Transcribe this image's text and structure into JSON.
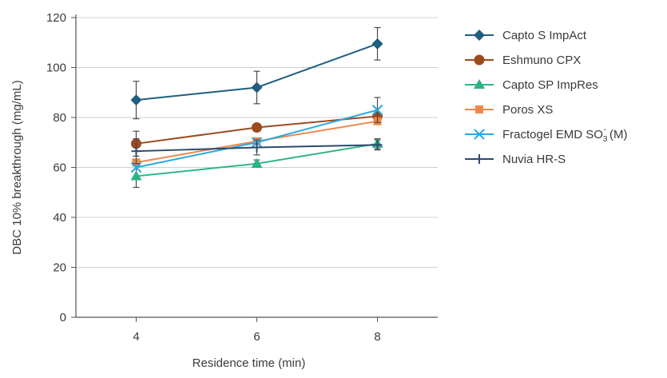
{
  "chart_data": {
    "type": "line",
    "xlabel": "Residence time (min)",
    "ylabel": "DBC 10% breakthrough (mg/mL)",
    "x": [
      4,
      6,
      8
    ],
    "xlim": [
      3,
      9
    ],
    "ylim": [
      0,
      120
    ],
    "xticks": [
      "4",
      "6",
      "8"
    ],
    "yticks": [
      "0",
      "20",
      "40",
      "60",
      "80",
      "100",
      "120"
    ],
    "grid": "horizontal",
    "legend": "right",
    "series": [
      {
        "name": "Capto S ImpAct",
        "color": "#1f5f7f",
        "marker": "diamond",
        "values": [
          87,
          92,
          109.5
        ],
        "err": [
          7.5,
          6.5,
          6.5
        ]
      },
      {
        "name": "Eshmuno CPX",
        "color": "#9c4a1e",
        "marker": "circle",
        "values": [
          69.5,
          76,
          80.5
        ],
        "err": [
          5,
          0,
          0
        ]
      },
      {
        "name": "Capto SP ImpRes",
        "color": "#2bb583",
        "marker": "triangle",
        "values": [
          56.5,
          61.5,
          69.5
        ],
        "err": [
          4.5,
          1.5,
          2
        ]
      },
      {
        "name": "Poros XS",
        "color": "#f0874a",
        "marker": "square",
        "values": [
          62,
          70.5,
          78.5
        ],
        "err": [
          0,
          0,
          0
        ]
      },
      {
        "name": "Fractogel EMD SO3- (M)",
        "color": "#2aa9e0",
        "marker": "x",
        "values": [
          60,
          70,
          83
        ],
        "err": [
          0,
          0,
          5
        ]
      },
      {
        "name": "Nuvia HR-S",
        "color": "#2c4a6e",
        "marker": "plus",
        "values": [
          66.5,
          68,
          69
        ],
        "err": [
          5,
          3,
          2
        ]
      }
    ]
  },
  "legend_labels": {
    "s0": "Capto S ImpAct",
    "s1": "Eshmuno CPX",
    "s2": "Capto SP ImpRes",
    "s3": "Poros XS",
    "s4_main": "Fractogel EMD SO",
    "s4_sub": "3",
    "s4_sup": "-",
    "s4_tail": " (M)",
    "s5": "Nuvia HR-S"
  }
}
